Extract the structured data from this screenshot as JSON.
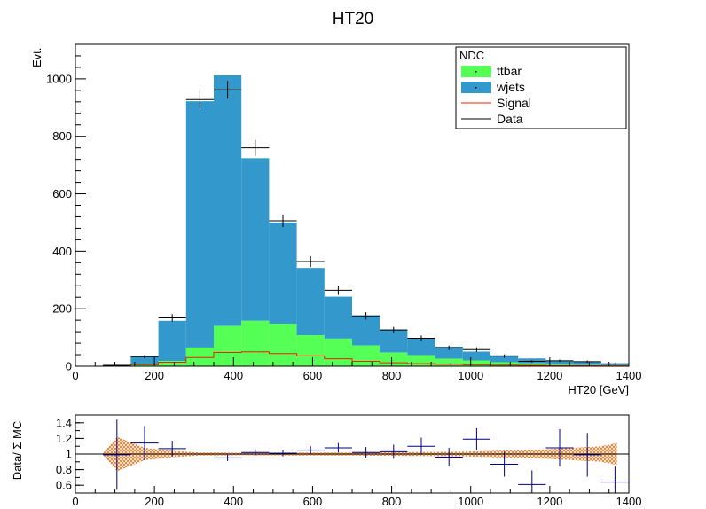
{
  "chart_data": [
    {
      "type": "bar",
      "stacked": true,
      "title": "HT20",
      "xlabel": "HT20 [GeV]",
      "ylabel": "Evt.",
      "xlim": [
        0,
        1400
      ],
      "ylim": [
        0,
        1120
      ],
      "x_ticks": [
        0,
        200,
        400,
        600,
        800,
        1000,
        1200,
        1400
      ],
      "y_ticks": [
        0,
        200,
        400,
        600,
        800,
        1000
      ],
      "legend_title": "NDC",
      "legend_position": "top-right",
      "bin_edges": [
        0,
        70,
        140,
        210,
        280,
        350,
        420,
        490,
        560,
        630,
        700,
        770,
        840,
        910,
        980,
        1050,
        1120,
        1190,
        1260,
        1330,
        1400
      ],
      "series": [
        {
          "name": "ttbar",
          "color": "#55ff55",
          "values": [
            0,
            1,
            8,
            18,
            65,
            140,
            158,
            148,
            108,
            96,
            72,
            48,
            38,
            26,
            20,
            14,
            10,
            7,
            5,
            3
          ]
        },
        {
          "name": "wjets",
          "color": "#3399cc",
          "values": [
            0,
            3,
            27,
            140,
            857,
            872,
            566,
            352,
            234,
            146,
            104,
            80,
            60,
            42,
            31,
            24,
            17,
            13,
            10,
            7
          ]
        },
        {
          "name": "Signal",
          "color": "#ee2200",
          "values": [
            0,
            1,
            5,
            14,
            30,
            48,
            50,
            44,
            36,
            26,
            17,
            12,
            9,
            7,
            5,
            4,
            3,
            2,
            2,
            1
          ]
        }
      ],
      "data": {
        "name": "Data",
        "color": "#000000",
        "x": [
          105,
          175,
          245,
          315,
          385,
          455,
          525,
          595,
          665,
          735,
          805,
          875,
          945,
          1015,
          1085,
          1155,
          1225,
          1295,
          1365
        ],
        "y": [
          3,
          33,
          168,
          928,
          962,
          760,
          506,
          364,
          264,
          175,
          126,
          97,
          64,
          58,
          35,
          17,
          19,
          16,
          8
        ],
        "err": [
          2,
          6,
          13,
          30,
          31,
          28,
          22,
          19,
          16,
          13,
          11,
          10,
          8,
          8,
          6,
          4,
          4,
          4,
          3
        ]
      }
    },
    {
      "type": "scatter",
      "ylabel": "Data/ Σ MC",
      "xlim": [
        0,
        1400
      ],
      "ylim": [
        0.5,
        1.5
      ],
      "x_ticks": [
        0,
        200,
        400,
        600,
        800,
        1000,
        1200,
        1400
      ],
      "y_ticks": [
        0.6,
        0.8,
        1,
        1.2,
        1.4
      ],
      "y_tick_labels": [
        "0.6",
        "0.8",
        "1",
        "1.2",
        "1.4"
      ],
      "reference_line": 1,
      "band_color": "#ee7722",
      "band": {
        "x": [
          70,
          105,
          140,
          175,
          210,
          245,
          280,
          315,
          350,
          420,
          560,
          700,
          840,
          980,
          1050,
          1120,
          1190,
          1260,
          1330,
          1370
        ],
        "halfwidth": [
          0.01,
          0.22,
          0.15,
          0.08,
          0.06,
          0.04,
          0.03,
          0.02,
          0.02,
          0.015,
          0.02,
          0.02,
          0.025,
          0.03,
          0.04,
          0.05,
          0.06,
          0.08,
          0.1,
          0.14
        ]
      },
      "points": {
        "color": "#000080",
        "x": [
          105,
          175,
          245,
          385,
          455,
          525,
          595,
          665,
          735,
          805,
          875,
          945,
          1015,
          1085,
          1155,
          1225,
          1295,
          1365
        ],
        "y": [
          0.99,
          1.14,
          1.07,
          0.95,
          1.02,
          1.01,
          1.05,
          1.08,
          1.02,
          1.03,
          1.1,
          0.96,
          1.19,
          0.87,
          0.61,
          1.08,
          0.99,
          0.64
        ],
        "err": [
          0.45,
          0.22,
          0.1,
          0.04,
          0.04,
          0.04,
          0.05,
          0.06,
          0.07,
          0.09,
          0.11,
          0.12,
          0.14,
          0.16,
          0.18,
          0.24,
          0.28,
          0.2
        ]
      }
    }
  ]
}
